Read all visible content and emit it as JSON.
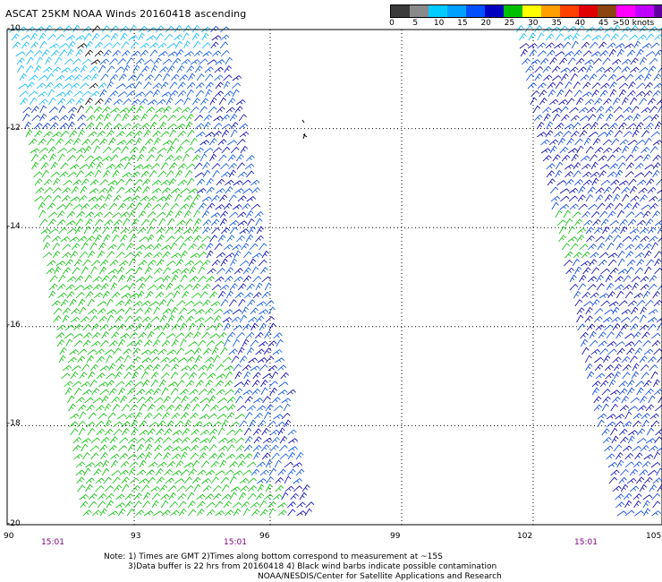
{
  "title": "ASCAT 25KM NOAA Winds 20160418 ascending",
  "legend": {
    "colors": [
      "#3a3a3a",
      "#8a8a8a",
      "#00ccff",
      "#00a0ff",
      "#0050ff",
      "#0000c0",
      "#00c000",
      "#ffff00",
      "#ffa000",
      "#ff4000",
      "#e00000",
      "#8b4513",
      "#ff00ff",
      "#c000ff",
      "#6000a0"
    ],
    "labels": [
      "0",
      "5",
      "10",
      "15",
      "20",
      "25",
      "30",
      "35",
      "40",
      "45",
      ">50 knots"
    ]
  },
  "axes": {
    "y_labels": [
      "-10",
      "-12",
      "-14",
      "-16",
      "-18",
      "-20"
    ],
    "x_labels": [
      "90",
      "93",
      "96",
      "99",
      "102",
      "105"
    ],
    "lat_range": [
      -20,
      -10
    ],
    "lon_range": [
      90,
      105
    ],
    "grid": "dotted"
  },
  "times": [
    "15:01",
    "15:01",
    "15:01"
  ],
  "notes": [
    "Note: 1) Times are GMT 2)Times along bottom correspond to measurement at ~15S",
    "3)Data buffer is 22 hrs from 20160418 4) Black wind barbs indicate possible contamination",
    "NOAA/NESDIS/Center for Satellite Applications and Research"
  ],
  "chart_data": {
    "type": "map",
    "swaths": [
      {
        "name": "western swath",
        "lon_extent_top": [
          90,
          94.8
        ],
        "lon_extent_bottom": [
          91.8,
          97
        ],
        "colors": [
          "#00cc00",
          "#0000cc",
          "#00b8ff"
        ]
      },
      {
        "name": "eastern swath",
        "lon_extent_top": [
          102.5,
          105
        ],
        "lon_extent_bottom": [
          104.5,
          105
        ],
        "colors": [
          "#0040e0",
          "#0000b0",
          "#00cc00"
        ]
      }
    ]
  }
}
